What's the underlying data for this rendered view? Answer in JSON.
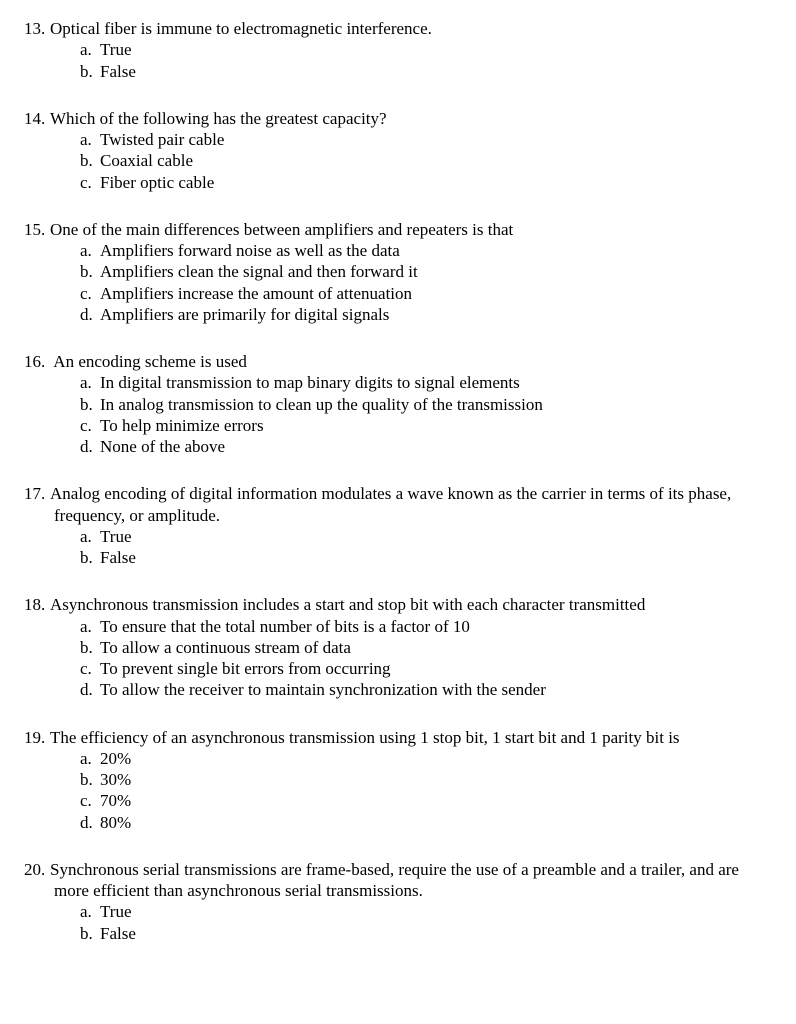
{
  "questions": [
    {
      "number": "13.",
      "stem": "Optical fiber is immune to electromagnetic interference.",
      "options": [
        {
          "letter": "a.",
          "text": "True"
        },
        {
          "letter": "b.",
          "text": "False"
        }
      ]
    },
    {
      "number": "14.",
      "stem": "Which of the following has the greatest capacity?",
      "options": [
        {
          "letter": "a.",
          "text": "Twisted pair cable"
        },
        {
          "letter": "b.",
          "text": "Coaxial cable"
        },
        {
          "letter": "c.",
          "text": "Fiber optic cable"
        }
      ]
    },
    {
      "number": "15.",
      "stem": "One of the main differences between amplifiers and repeaters is that",
      "options": [
        {
          "letter": "a.",
          "text": "Amplifiers forward noise as well as the data"
        },
        {
          "letter": "b.",
          "text": "Amplifiers clean the signal and then forward it"
        },
        {
          "letter": "c.",
          "text": "Amplifiers increase the amount of attenuation"
        },
        {
          "letter": "d.",
          "text": "Amplifiers are primarily for digital signals"
        }
      ]
    },
    {
      "number": "16.",
      "stem": " An encoding scheme is used",
      "options": [
        {
          "letter": "a.",
          "text": "In digital transmission to map binary digits to signal elements"
        },
        {
          "letter": "b.",
          "text": "In analog transmission to clean up the quality of the transmission"
        },
        {
          "letter": "c.",
          "text": "To help minimize errors"
        },
        {
          "letter": "d.",
          "text": "None of the above"
        }
      ]
    },
    {
      "number": "17.",
      "stem": "Analog encoding of digital information modulates a wave known as the carrier in terms of its phase, frequency, or amplitude.",
      "options": [
        {
          "letter": "a.",
          "text": "True"
        },
        {
          "letter": "b.",
          "text": "False"
        }
      ]
    },
    {
      "number": "18.",
      "stem": "Asynchronous transmission includes a start and stop bit with each character transmitted",
      "options": [
        {
          "letter": "a.",
          "text": "To ensure that the total number of bits is a factor of 10"
        },
        {
          "letter": "b.",
          "text": "To allow a continuous stream of data"
        },
        {
          "letter": "c.",
          "text": "To prevent single bit errors from occurring"
        },
        {
          "letter": "d.",
          "text": "To allow the receiver to maintain synchronization with the sender"
        }
      ]
    },
    {
      "number": "19.",
      "stem": "The efficiency of an asynchronous transmission using 1 stop bit, 1 start bit and 1 parity bit is",
      "options": [
        {
          "letter": "a.",
          "text": "20%"
        },
        {
          "letter": "b.",
          "text": "30%"
        },
        {
          "letter": "c.",
          "text": "70%"
        },
        {
          "letter": "d.",
          "text": "80%"
        }
      ]
    },
    {
      "number": "20.",
      "stem": "Synchronous serial transmissions are frame-based, require the use of a preamble and a trailer, and are more efficient than asynchronous serial transmissions.",
      "options": [
        {
          "letter": "a.",
          "text": "True"
        },
        {
          "letter": "b.",
          "text": "False"
        }
      ]
    }
  ]
}
